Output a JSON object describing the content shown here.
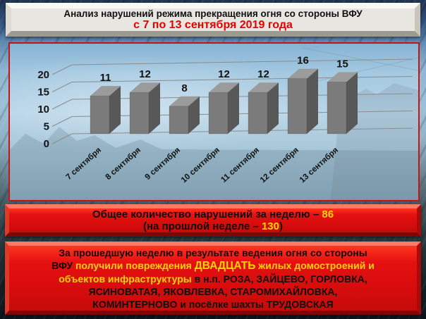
{
  "header": {
    "title": "Анализ нарушений режима прекращения огня со стороны ВФУ",
    "subtitle": "с 7 по 13 сентября 2019 года"
  },
  "chart_data": {
    "type": "bar",
    "style": "3d-column",
    "categories": [
      "7 сентября",
      "8 сентября",
      "9 сентября",
      "10 сентября",
      "11 сентября",
      "12 сентября",
      "13 сентября"
    ],
    "values": [
      11,
      12,
      8,
      12,
      12,
      16,
      15
    ],
    "xlabel": "",
    "ylabel": "",
    "ylim": [
      0,
      20
    ],
    "yticks": [
      0,
      5,
      10,
      15,
      20
    ],
    "grid": true,
    "legend": false,
    "value_labels": true,
    "bar_color": "#7b7b7b"
  },
  "summary_banner": {
    "line1": {
      "prefix": "Общее количество нарушений за неделю – ",
      "value": "86"
    },
    "line2": {
      "prefix": "(на прошлой неделе – ",
      "value": "130",
      "suffix": ")"
    }
  },
  "details_banner": {
    "lines": [
      {
        "segments": [
          {
            "text": "За прошедшую неделю в результате ведения огня со стороны",
            "color": "black"
          }
        ]
      },
      {
        "segments": [
          {
            "text": "ВФУ ",
            "color": "black"
          },
          {
            "text": "получили повреждения ",
            "color": "yellow"
          },
          {
            "text": "ДВАДЦАТЬ",
            "color": "yellow"
          },
          {
            "text": " жилых домостроений и",
            "color": "yellow"
          }
        ]
      },
      {
        "segments": [
          {
            "text": "объектов инфраструктуры ",
            "color": "yellow"
          },
          {
            "text": "в н.п. РОЗА, ЗАЙЦЕВО, ГОРЛОВКА,",
            "color": "black"
          }
        ]
      },
      {
        "segments": [
          {
            "text": "ЯСИНОВАТАЯ, ЯКОВЛЕВКА, СТАРОМИХАЙЛОВКА,",
            "color": "black"
          }
        ]
      },
      {
        "segments": [
          {
            "text": "КОМИНТЕРНОВО и посёлке шахты ТРУДОВСКАЯ",
            "color": "black"
          }
        ]
      }
    ]
  },
  "colors": {
    "banner_red": "#e01010",
    "highlight_yellow": "#ffd400",
    "header_subtitle_red": "#e60000",
    "chart_border_red": "#c41414",
    "bar_front_gray": "#7b7b7b",
    "bar_top_gray": "#9b9b9b",
    "bar_side_gray": "#585858",
    "text_black": "#0d0d0d"
  }
}
